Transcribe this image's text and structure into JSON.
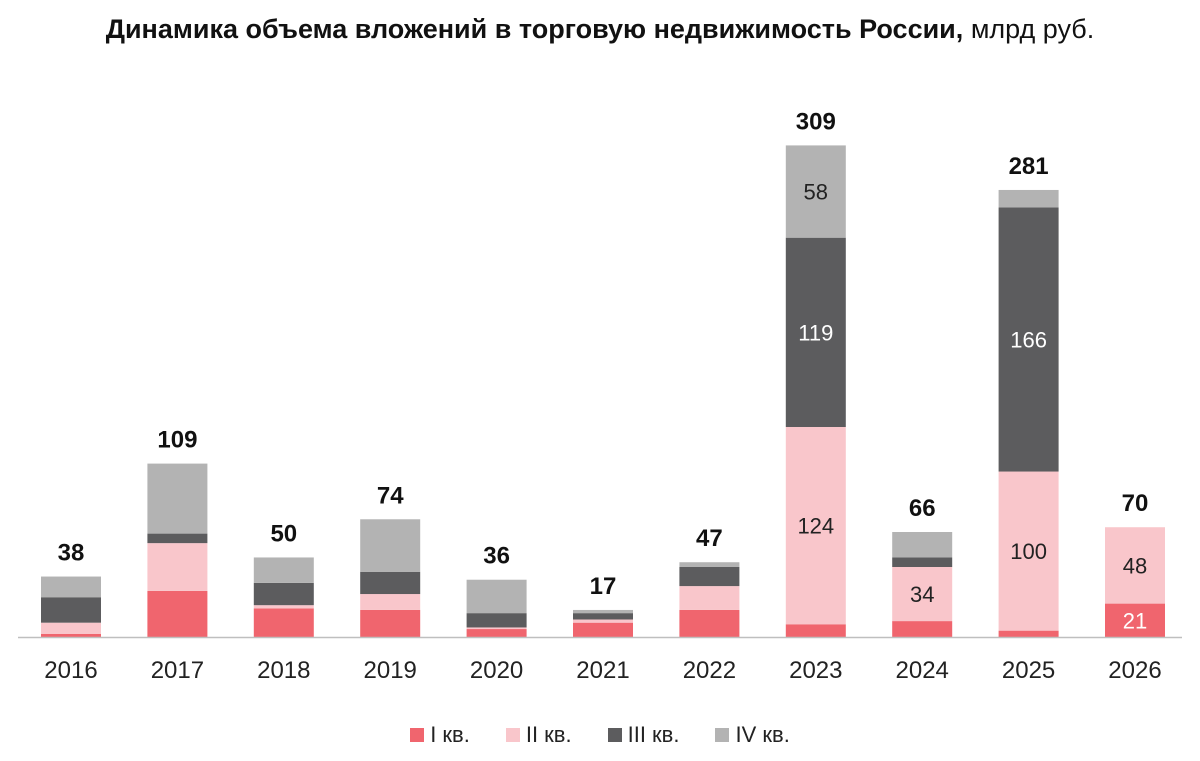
{
  "title": {
    "main": "Динамика объема вложений в торговую недвижимость России,",
    "unit": "млрд руб."
  },
  "colors": {
    "q1": "#f0656e",
    "q2": "#f9c6cb",
    "q3": "#5c5c5e",
    "q4": "#b3b3b3",
    "axis": "#bfbfbf"
  },
  "chart_data": {
    "type": "bar",
    "stacked": true,
    "categories": [
      "2016",
      "2017",
      "2018",
      "2019",
      "2020",
      "2021",
      "2022",
      "2023",
      "2024",
      "2025",
      "2026"
    ],
    "series": [
      {
        "name": "I кв.",
        "values": [
          2,
          29,
          18,
          17,
          5,
          9,
          17,
          8,
          10,
          4,
          21
        ]
      },
      {
        "name": "II кв.",
        "values": [
          7,
          30,
          2,
          10,
          1,
          2,
          15,
          124,
          34,
          100,
          48
        ]
      },
      {
        "name": "III кв.",
        "values": [
          16,
          6,
          14,
          14,
          9,
          4,
          12,
          119,
          6,
          166,
          0
        ]
      },
      {
        "name": "IV кв.",
        "values": [
          13,
          44,
          16,
          33,
          21,
          2,
          3,
          58,
          16,
          11,
          0
        ]
      }
    ],
    "totals": [
      38,
      109,
      50,
      74,
      36,
      17,
      47,
      309,
      66,
      281,
      70
    ],
    "segment_labels": [
      {
        "category": "2023",
        "series": 1,
        "text": "124"
      },
      {
        "category": "2023",
        "series": 2,
        "text": "119"
      },
      {
        "category": "2023",
        "series": 3,
        "text": "58"
      },
      {
        "category": "2024",
        "series": 1,
        "text": "34"
      },
      {
        "category": "2025",
        "series": 1,
        "text": "100"
      },
      {
        "category": "2025",
        "series": 2,
        "text": "166"
      },
      {
        "category": "2026",
        "series": 0,
        "text": "21"
      },
      {
        "category": "2026",
        "series": 1,
        "text": "48"
      }
    ],
    "ylim": [
      0,
      330
    ],
    "legend_position": "bottom"
  }
}
